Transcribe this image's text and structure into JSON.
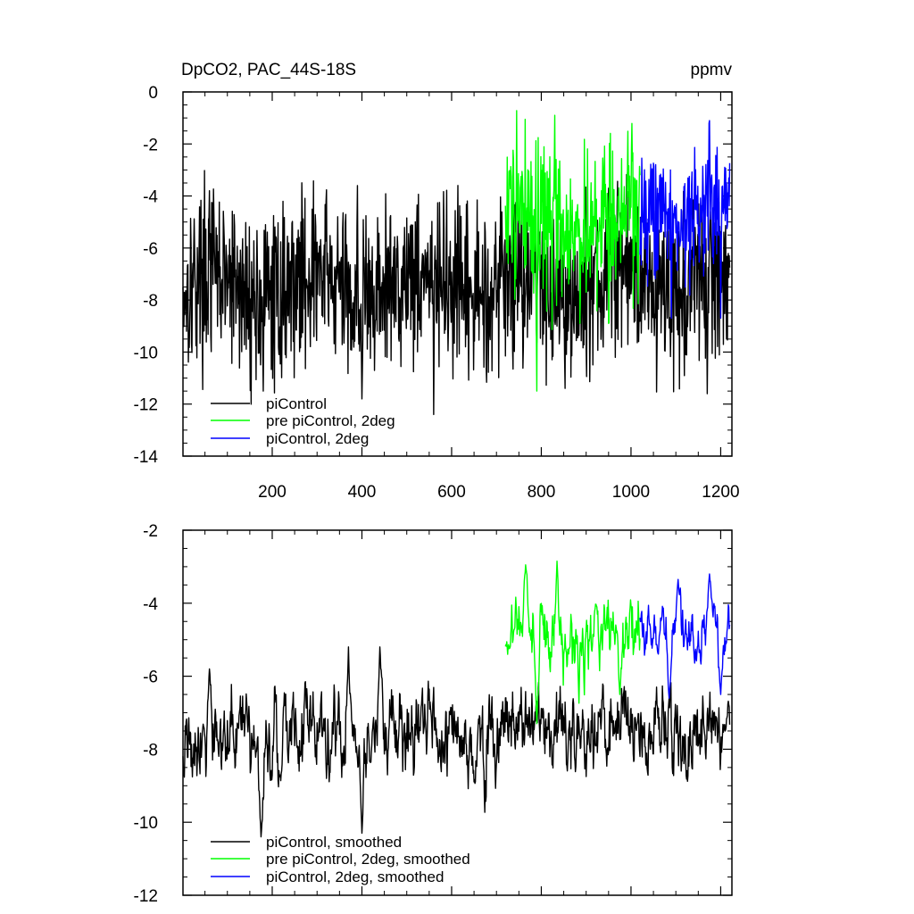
{
  "chart_data": [
    {
      "type": "line",
      "title": "DpCO2, PAC_44S-18S",
      "units": "ppmv",
      "xlim": [
        1,
        1225
      ],
      "ylim": [
        -14,
        0
      ],
      "xticks": [
        200,
        400,
        600,
        800,
        1000,
        1200
      ],
      "yticks": [
        0,
        -2,
        -4,
        -6,
        -8,
        -10,
        -12,
        -14
      ],
      "xtick_labels": [
        "200",
        "400",
        "600",
        "800",
        "1000",
        "1200"
      ],
      "ytick_labels": [
        "0",
        "-2",
        "-4",
        "-6",
        "-8",
        "-10",
        "-12",
        "-14"
      ],
      "legend_position": "bottom-left",
      "series": [
        {
          "name": "piControl",
          "color": "#000000",
          "x_start": 1,
          "x_end": 1220,
          "mean": -7.6,
          "amplitude": 1.6,
          "slow_trend": 0.4,
          "peaks": [
            [
              400,
              -11.8
            ],
            [
              560,
              -12.4
            ],
            [
              1170,
              -11.6
            ],
            [
              180,
              -11.5
            ],
            [
              390,
              -3.6
            ],
            [
              60,
              -3.8
            ]
          ]
        },
        {
          "name": "pre piControl, 2deg",
          "color": "#00ff00",
          "x_start": 720,
          "x_end": 1020,
          "mean": -5.0,
          "amplitude": 1.5,
          "peaks": [
            [
              830,
              -0.9
            ],
            [
              790,
              -11.5
            ],
            [
              950,
              -8.9
            ]
          ]
        },
        {
          "name": "piControl, 2deg",
          "color": "#0000ff",
          "x_start": 1020,
          "x_end": 1220,
          "mean": -4.6,
          "amplitude": 1.2,
          "peaks": [
            [
              1175,
              -1.1
            ],
            [
              1200,
              -8.7
            ],
            [
              1090,
              -8.7
            ]
          ]
        }
      ]
    },
    {
      "type": "line",
      "title": "",
      "xlim": [
        1,
        1225
      ],
      "ylim": [
        -12,
        -2
      ],
      "xticks": [
        200,
        400,
        600,
        800,
        1000,
        1200
      ],
      "yticks": [
        -2,
        -4,
        -6,
        -8,
        -10,
        -12
      ],
      "ytick_labels": [
        "-2",
        "-4",
        "-6",
        "-8",
        "-10",
        "-12"
      ],
      "legend_position": "bottom-left",
      "series": [
        {
          "name": "piControl, smoothed",
          "color": "#000000",
          "x_start": 1,
          "x_end": 1220,
          "mean": -7.7,
          "amplitude": 0.8,
          "slow_trend": 0.3,
          "peaks": [
            [
              400,
              -10.3
            ],
            [
              370,
              -5.2
            ],
            [
              440,
              -5.2
            ],
            [
              60,
              -5.8
            ],
            [
              175,
              -10.4
            ],
            [
              1210,
              -7.5
            ]
          ]
        },
        {
          "name": "pre piControl, 2deg, smoothed",
          "color": "#00ff00",
          "x_start": 720,
          "x_end": 1020,
          "mean": -4.9,
          "amplitude": 0.6,
          "peaks": [
            [
              765,
              -2.95
            ],
            [
              835,
              -2.85
            ],
            [
              790,
              -7.3
            ],
            [
              975,
              -6.5
            ],
            [
              725,
              -5.4
            ]
          ]
        },
        {
          "name": "piControl, 2deg, smoothed",
          "color": "#0000ff",
          "x_start": 1020,
          "x_end": 1220,
          "mean": -4.8,
          "amplitude": 0.45,
          "peaks": [
            [
              1175,
              -3.2
            ],
            [
              1105,
              -3.35
            ],
            [
              1085,
              -6.6
            ],
            [
              1200,
              -6.5
            ]
          ]
        }
      ]
    }
  ]
}
